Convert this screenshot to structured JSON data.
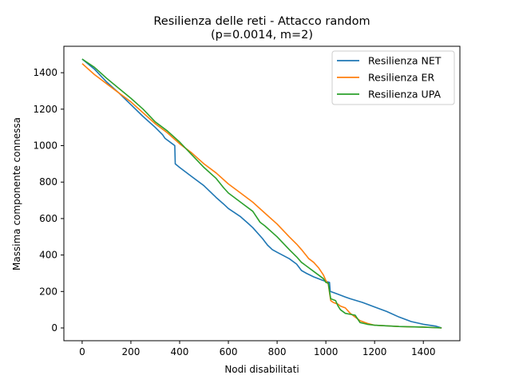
{
  "chart_data": {
    "type": "line",
    "title": "Resilienza delle reti - Attacco random",
    "subtitle": "(p=0.0014, m=2)",
    "xlabel": "Nodi disabilitati",
    "ylabel": "Massima componente connessa",
    "xlim": [
      -75,
      1550
    ],
    "ylim": [
      -70,
      1545
    ],
    "xticks": [
      0,
      200,
      400,
      600,
      800,
      1000,
      1200,
      1400
    ],
    "yticks": [
      0,
      200,
      400,
      600,
      800,
      1000,
      1200,
      1400
    ],
    "grid": false,
    "legend_position": "top-right",
    "series": [
      {
        "name": "Resilienza NET",
        "color": "#1f77b4",
        "points": [
          [
            0,
            1475
          ],
          [
            50,
            1420
          ],
          [
            100,
            1350
          ],
          [
            150,
            1290
          ],
          [
            200,
            1225
          ],
          [
            250,
            1160
          ],
          [
            300,
            1100
          ],
          [
            330,
            1060
          ],
          [
            340,
            1040
          ],
          [
            370,
            1010
          ],
          [
            380,
            1000
          ],
          [
            382,
            900
          ],
          [
            400,
            880
          ],
          [
            450,
            830
          ],
          [
            500,
            780
          ],
          [
            550,
            715
          ],
          [
            580,
            680
          ],
          [
            600,
            655
          ],
          [
            650,
            610
          ],
          [
            680,
            575
          ],
          [
            700,
            550
          ],
          [
            740,
            490
          ],
          [
            760,
            455
          ],
          [
            780,
            430
          ],
          [
            800,
            415
          ],
          [
            850,
            380
          ],
          [
            880,
            350
          ],
          [
            900,
            315
          ],
          [
            920,
            300
          ],
          [
            950,
            280
          ],
          [
            980,
            265
          ],
          [
            1000,
            255
          ],
          [
            1015,
            250
          ],
          [
            1018,
            200
          ],
          [
            1030,
            195
          ],
          [
            1050,
            185
          ],
          [
            1080,
            170
          ],
          [
            1100,
            160
          ],
          [
            1150,
            140
          ],
          [
            1200,
            115
          ],
          [
            1250,
            90
          ],
          [
            1300,
            60
          ],
          [
            1350,
            35
          ],
          [
            1400,
            20
          ],
          [
            1450,
            10
          ],
          [
            1475,
            0
          ]
        ]
      },
      {
        "name": "Resilienza ER",
        "color": "#ff7f0e",
        "points": [
          [
            0,
            1450
          ],
          [
            50,
            1390
          ],
          [
            100,
            1340
          ],
          [
            150,
            1290
          ],
          [
            200,
            1240
          ],
          [
            250,
            1180
          ],
          [
            300,
            1120
          ],
          [
            350,
            1070
          ],
          [
            400,
            1010
          ],
          [
            450,
            960
          ],
          [
            500,
            900
          ],
          [
            550,
            850
          ],
          [
            600,
            790
          ],
          [
            650,
            740
          ],
          [
            700,
            690
          ],
          [
            750,
            630
          ],
          [
            800,
            570
          ],
          [
            850,
            500
          ],
          [
            880,
            460
          ],
          [
            900,
            430
          ],
          [
            930,
            380
          ],
          [
            950,
            360
          ],
          [
            970,
            330
          ],
          [
            990,
            290
          ],
          [
            1000,
            260
          ],
          [
            1010,
            240
          ],
          [
            1020,
            150
          ],
          [
            1030,
            140
          ],
          [
            1050,
            130
          ],
          [
            1060,
            120
          ],
          [
            1080,
            110
          ],
          [
            1100,
            80
          ],
          [
            1120,
            60
          ],
          [
            1140,
            40
          ],
          [
            1170,
            25
          ],
          [
            1200,
            15
          ],
          [
            1300,
            8
          ],
          [
            1400,
            5
          ],
          [
            1475,
            0
          ]
        ]
      },
      {
        "name": "Resilienza UPA",
        "color": "#2ca02c",
        "points": [
          [
            0,
            1475
          ],
          [
            50,
            1430
          ],
          [
            100,
            1370
          ],
          [
            150,
            1315
          ],
          [
            200,
            1260
          ],
          [
            250,
            1200
          ],
          [
            300,
            1130
          ],
          [
            350,
            1080
          ],
          [
            400,
            1020
          ],
          [
            450,
            950
          ],
          [
            500,
            880
          ],
          [
            550,
            820
          ],
          [
            580,
            770
          ],
          [
            600,
            740
          ],
          [
            650,
            690
          ],
          [
            700,
            640
          ],
          [
            730,
            580
          ],
          [
            750,
            560
          ],
          [
            800,
            500
          ],
          [
            850,
            430
          ],
          [
            880,
            390
          ],
          [
            900,
            360
          ],
          [
            930,
            330
          ],
          [
            950,
            310
          ],
          [
            970,
            290
          ],
          [
            990,
            270
          ],
          [
            1000,
            250
          ],
          [
            1010,
            245
          ],
          [
            1015,
            200
          ],
          [
            1020,
            160
          ],
          [
            1040,
            150
          ],
          [
            1050,
            120
          ],
          [
            1060,
            100
          ],
          [
            1080,
            80
          ],
          [
            1100,
            75
          ],
          [
            1120,
            70
          ],
          [
            1140,
            30
          ],
          [
            1170,
            20
          ],
          [
            1200,
            15
          ],
          [
            1300,
            8
          ],
          [
            1400,
            5
          ],
          [
            1475,
            0
          ]
        ]
      }
    ]
  }
}
